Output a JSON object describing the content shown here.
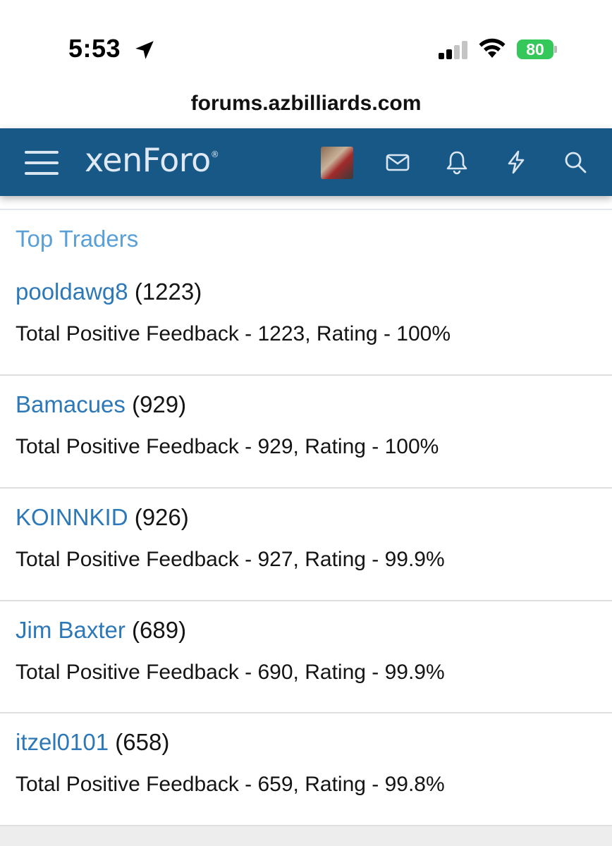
{
  "status_bar": {
    "time": "5:53",
    "battery_percent": "80",
    "battery_color": "#34c759",
    "signal_bars_active": 2,
    "signal_bars_total": 4
  },
  "browser": {
    "url": "forums.azbilliards.com"
  },
  "header": {
    "logo_text": "xenForo",
    "logo_mark": "®",
    "background_color": "#185886",
    "icons": [
      "menu-icon",
      "avatar",
      "mail-icon",
      "bell-icon",
      "bolt-icon",
      "search-icon"
    ]
  },
  "top_traders": {
    "title": "Top Traders",
    "items": [
      {
        "username": "pooldawg8",
        "count": "(1223)",
        "feedback": "Total Positive Feedback - 1223, Rating - 100%"
      },
      {
        "username": "Bamacues",
        "count": "(929)",
        "feedback": "Total Positive Feedback - 929, Rating - 100%"
      },
      {
        "username": "KOINNKID",
        "count": "(926)",
        "feedback": "Total Positive Feedback - 927, Rating - 99.9%"
      },
      {
        "username": "Jim Baxter",
        "count": "(689)",
        "feedback": "Total Positive Feedback - 690, Rating - 99.9%"
      },
      {
        "username": "itzel0101",
        "count": "(658)",
        "feedback": "Total Positive Feedback - 659, Rating - 99.8%"
      }
    ]
  }
}
